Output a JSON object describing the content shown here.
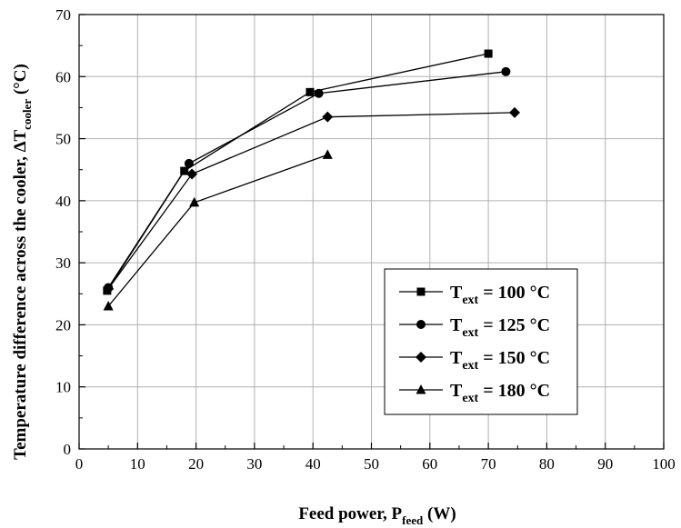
{
  "chart_data": {
    "type": "line",
    "xlabel": {
      "main": "Feed power, P",
      "sub": "feed",
      "tail": " (W)"
    },
    "ylabel": {
      "main": "Temperature difference across the cooler, ΔT",
      "sub": "cooler",
      "tail": " (°C)"
    },
    "xlim": [
      0,
      100
    ],
    "ylim": [
      0,
      70
    ],
    "x_ticks": [
      "0",
      "10",
      "20",
      "30",
      "40",
      "50",
      "60",
      "70",
      "80",
      "90",
      "100"
    ],
    "y_ticks": [
      "0",
      "10",
      "20",
      "30",
      "40",
      "50",
      "60",
      "70"
    ],
    "grid": true,
    "legend_position": "lower-right",
    "series": [
      {
        "name": "T",
        "name_sub": "ext",
        "name_tail": " = 100 °C",
        "marker": "square",
        "x": [
          4.8,
          18.0,
          39.5,
          70.0
        ],
        "y": [
          25.5,
          44.8,
          57.5,
          63.7
        ]
      },
      {
        "name": "T",
        "name_sub": "ext",
        "name_tail": " = 125 °C",
        "marker": "circle",
        "x": [
          5.0,
          18.8,
          41.0,
          73.0
        ],
        "y": [
          26.0,
          46.0,
          57.3,
          60.8
        ]
      },
      {
        "name": "T",
        "name_sub": "ext",
        "name_tail": " = 150 °C",
        "marker": "diamond",
        "x": [
          5.0,
          19.3,
          42.5,
          74.5
        ],
        "y": [
          25.8,
          44.3,
          53.5,
          54.2
        ]
      },
      {
        "name": "T",
        "name_sub": "ext",
        "name_tail": " = 180 °C",
        "marker": "triangle",
        "x": [
          5.0,
          19.7,
          42.5
        ],
        "y": [
          23.0,
          39.7,
          47.4
        ]
      }
    ]
  }
}
